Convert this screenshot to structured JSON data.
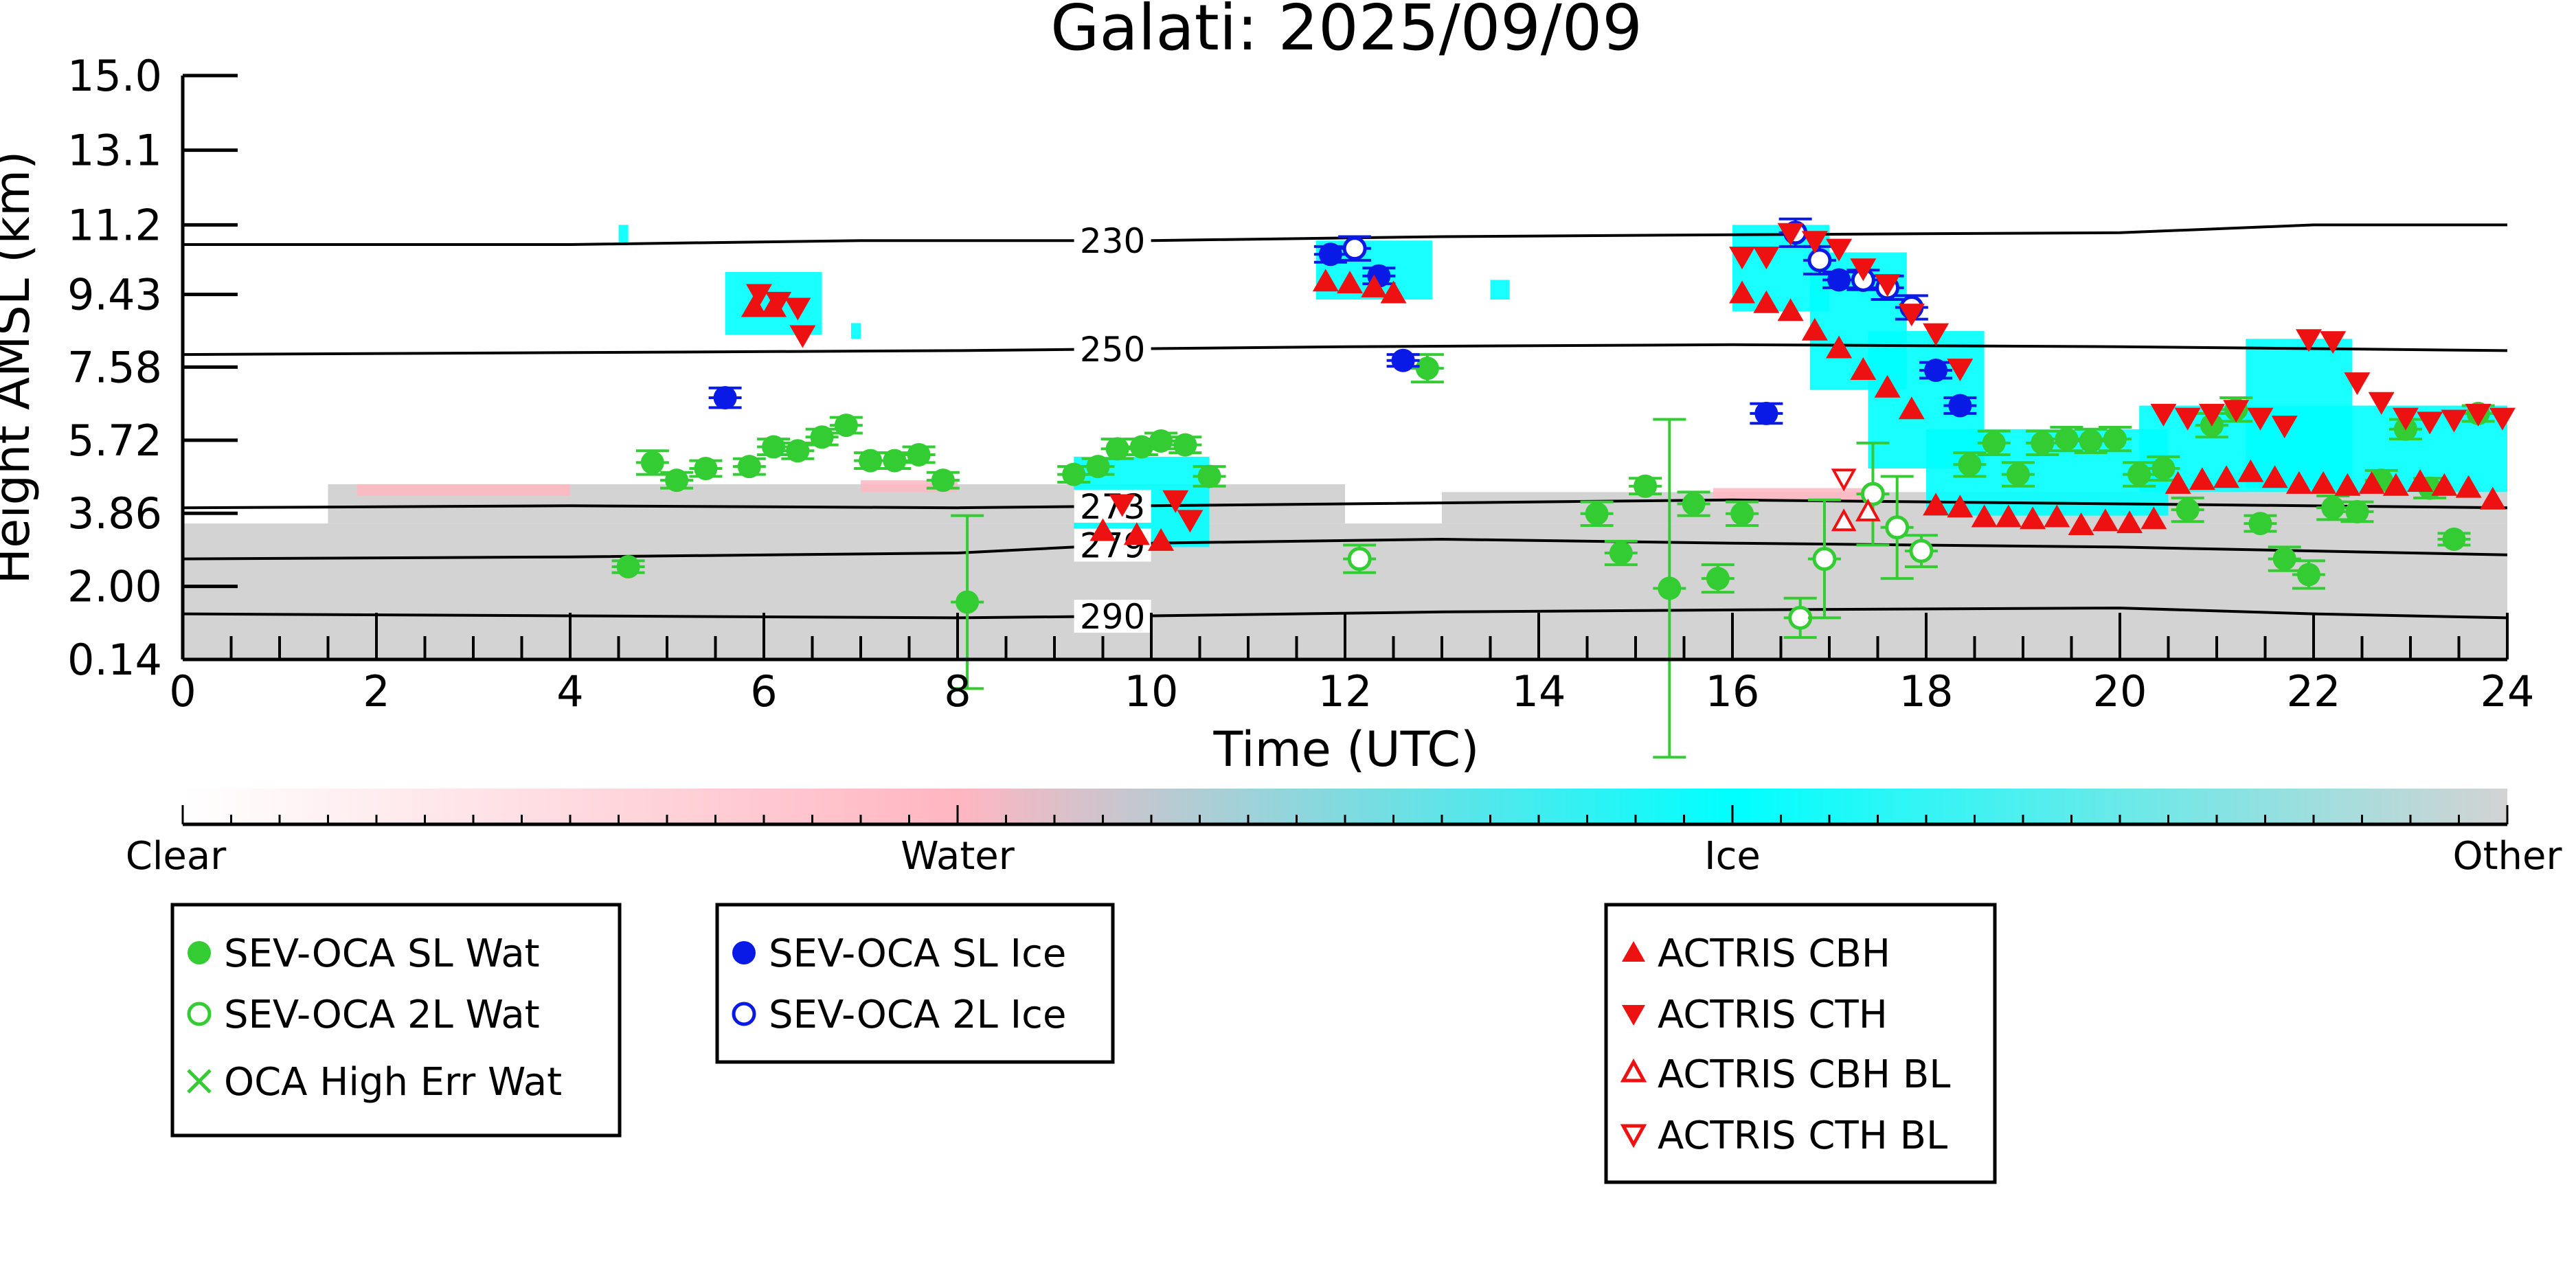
{
  "chart_data": {
    "type": "scatter",
    "title": "Galati: 2025/09/09",
    "xlabel": "Time (UTC)",
    "ylabel": "Height AMSL (km)",
    "xlim": [
      0,
      24
    ],
    "ylim": [
      0.14,
      15.0
    ],
    "xticks": [
      0,
      2,
      4,
      6,
      8,
      10,
      12,
      14,
      16,
      18,
      20,
      22,
      24
    ],
    "yticks": [
      0.14,
      2.0,
      3.86,
      5.72,
      7.58,
      9.43,
      11.2,
      13.1,
      15.0
    ],
    "ytick_labels": [
      "0.14",
      "2.00",
      "3.86",
      "5.72",
      "7.58",
      "9.43",
      "11.2",
      "13.1",
      "15.0"
    ],
    "contours": [
      {
        "label": "230",
        "label_x": 9.6,
        "points": [
          [
            0,
            10.7
          ],
          [
            4,
            10.7
          ],
          [
            7,
            10.8
          ],
          [
            10,
            10.8
          ],
          [
            13,
            10.9
          ],
          [
            16,
            10.95
          ],
          [
            20,
            11.0
          ],
          [
            22,
            11.2
          ],
          [
            24,
            11.2
          ]
        ]
      },
      {
        "label": "250",
        "label_x": 9.6,
        "points": [
          [
            0,
            7.9
          ],
          [
            4,
            7.95
          ],
          [
            8,
            8.0
          ],
          [
            12,
            8.1
          ],
          [
            16,
            8.15
          ],
          [
            20,
            8.1
          ],
          [
            24,
            8.0
          ]
        ]
      },
      {
        "label": "273",
        "label_x": 9.6,
        "points": [
          [
            0,
            4.0
          ],
          [
            4,
            4.05
          ],
          [
            8,
            4.0
          ],
          [
            10,
            4.05
          ],
          [
            12,
            4.1
          ],
          [
            16,
            4.2
          ],
          [
            20,
            4.1
          ],
          [
            24,
            4.0
          ]
        ]
      },
      {
        "label": "279",
        "label_x": 9.6,
        "points": [
          [
            0,
            2.7
          ],
          [
            4,
            2.75
          ],
          [
            8,
            2.85
          ],
          [
            10,
            3.1
          ],
          [
            13,
            3.2
          ],
          [
            16,
            3.1
          ],
          [
            20,
            3.0
          ],
          [
            24,
            2.8
          ]
        ]
      },
      {
        "label": "290",
        "label_x": 9.6,
        "points": [
          [
            0,
            1.3
          ],
          [
            4,
            1.25
          ],
          [
            8,
            1.2
          ],
          [
            10,
            1.25
          ],
          [
            13,
            1.35
          ],
          [
            16,
            1.4
          ],
          [
            20,
            1.45
          ],
          [
            22,
            1.3
          ],
          [
            24,
            1.2
          ]
        ]
      }
    ],
    "background": {
      "other_regions": [
        {
          "x0": 0,
          "x1": 24,
          "y0": 0.14,
          "y1": 3.6
        },
        {
          "x0": 1.5,
          "x1": 12,
          "y0": 3.6,
          "y1": 4.6
        },
        {
          "x0": 13,
          "x1": 24,
          "y0": 3.6,
          "y1": 4.4
        }
      ],
      "water_regions": [
        {
          "x0": 1.8,
          "x1": 4.0,
          "y0": 4.3,
          "y1": 4.6
        },
        {
          "x0": 7.0,
          "x1": 8.0,
          "y0": 4.4,
          "y1": 4.7
        },
        {
          "x0": 15.8,
          "x1": 17.5,
          "y0": 4.2,
          "y1": 4.5
        }
      ],
      "ice_regions": [
        {
          "x0": 4.5,
          "x1": 4.6,
          "y0": 10.7,
          "y1": 11.2
        },
        {
          "x0": 5.6,
          "x1": 6.6,
          "y0": 8.4,
          "y1": 10.0
        },
        {
          "x0": 6.9,
          "x1": 7.0,
          "y0": 8.3,
          "y1": 8.7
        },
        {
          "x0": 9.2,
          "x1": 10.6,
          "y0": 3.0,
          "y1": 5.3
        },
        {
          "x0": 11.7,
          "x1": 12.9,
          "y0": 9.3,
          "y1": 10.8
        },
        {
          "x0": 13.5,
          "x1": 13.7,
          "y0": 9.3,
          "y1": 9.8
        },
        {
          "x0": 16.0,
          "x1": 17.0,
          "y0": 9.0,
          "y1": 11.2
        },
        {
          "x0": 16.8,
          "x1": 17.8,
          "y0": 7.0,
          "y1": 10.5
        },
        {
          "x0": 17.4,
          "x1": 18.6,
          "y0": 5.0,
          "y1": 8.5
        },
        {
          "x0": 18.0,
          "x1": 20.5,
          "y0": 3.8,
          "y1": 6.0
        },
        {
          "x0": 20.2,
          "x1": 24.0,
          "y0": 4.4,
          "y1": 6.6
        },
        {
          "x0": 21.3,
          "x1": 22.4,
          "y0": 4.5,
          "y1": 8.3
        }
      ]
    },
    "series": [
      {
        "name": "SEV-OCA SL Wat",
        "marker": "circle-filled",
        "color": "#33cc33",
        "points": [
          [
            4.6,
            2.5,
            0.15
          ],
          [
            4.85,
            5.15,
            0.3
          ],
          [
            5.1,
            4.7,
            0.2
          ],
          [
            5.4,
            5.0,
            0.2
          ],
          [
            5.85,
            5.05,
            0.2
          ],
          [
            6.1,
            5.55,
            0.2
          ],
          [
            6.35,
            5.45,
            0.2
          ],
          [
            6.6,
            5.8,
            0.2
          ],
          [
            6.85,
            6.1,
            0.2
          ],
          [
            7.1,
            5.2,
            0.2
          ],
          [
            7.35,
            5.2,
            0.2
          ],
          [
            7.6,
            5.35,
            0.2
          ],
          [
            7.85,
            4.7,
            0.2
          ],
          [
            8.1,
            1.6,
            2.2
          ],
          [
            9.2,
            4.85,
            0.2
          ],
          [
            9.45,
            5.05,
            0.2
          ],
          [
            9.65,
            5.5,
            0.25
          ],
          [
            9.9,
            5.55,
            0.2
          ],
          [
            10.1,
            5.7,
            0.2
          ],
          [
            10.35,
            5.6,
            0.2
          ],
          [
            10.6,
            4.8,
            0.25
          ],
          [
            12.85,
            7.55,
            0.35
          ],
          [
            14.6,
            3.85,
            0.3
          ],
          [
            14.85,
            2.85,
            0.3
          ],
          [
            15.1,
            4.55,
            0.2
          ],
          [
            15.35,
            1.95,
            4.3
          ],
          [
            15.6,
            4.1,
            0.3
          ],
          [
            15.85,
            2.2,
            0.35
          ],
          [
            16.1,
            3.85,
            0.3
          ],
          [
            18.45,
            5.1,
            0.3
          ],
          [
            18.7,
            5.65,
            0.3
          ],
          [
            18.95,
            4.85,
            0.3
          ],
          [
            19.2,
            5.65,
            0.3
          ],
          [
            19.45,
            5.75,
            0.3
          ],
          [
            19.7,
            5.7,
            0.3
          ],
          [
            19.95,
            5.75,
            0.3
          ],
          [
            20.2,
            4.85,
            0.3
          ],
          [
            20.45,
            5.0,
            0.3
          ],
          [
            20.7,
            3.95,
            0.3
          ],
          [
            20.95,
            6.1,
            0.3
          ],
          [
            21.2,
            6.5,
            0.3
          ],
          [
            21.45,
            3.6,
            0.2
          ],
          [
            21.7,
            2.7,
            0.3
          ],
          [
            21.95,
            2.3,
            0.35
          ],
          [
            22.2,
            4.0,
            0.3
          ],
          [
            22.45,
            3.9,
            0.25
          ],
          [
            22.7,
            4.7,
            0.25
          ],
          [
            22.95,
            6.0,
            0.25
          ],
          [
            23.2,
            4.5,
            0.25
          ],
          [
            23.45,
            3.2,
            0.15
          ],
          [
            23.7,
            6.4,
            0.2
          ]
        ]
      },
      {
        "name": "SEV-OCA 2L Wat",
        "marker": "circle-open",
        "color": "#33cc33",
        "points": [
          [
            12.15,
            2.7,
            0.35
          ],
          [
            16.7,
            1.2,
            0.5
          ],
          [
            16.95,
            2.7,
            1.5
          ],
          [
            17.45,
            4.35,
            1.3
          ],
          [
            17.7,
            3.5,
            1.3
          ],
          [
            17.95,
            2.9,
            0.4
          ]
        ]
      },
      {
        "name": "OCA High Err Wat",
        "marker": "x",
        "color": "#33cc33",
        "points": []
      },
      {
        "name": "SEV-OCA SL Ice",
        "marker": "circle-filled",
        "color": "#0a1ae6",
        "points": [
          [
            5.6,
            6.8,
            0.25
          ],
          [
            11.85,
            10.45,
            0.2
          ],
          [
            12.35,
            9.9,
            0.2
          ],
          [
            12.6,
            7.75,
            0.15
          ],
          [
            16.35,
            6.4,
            0.25
          ],
          [
            17.1,
            9.8,
            0.2
          ],
          [
            18.1,
            7.5,
            0.2
          ],
          [
            18.35,
            6.6,
            0.2
          ]
        ]
      },
      {
        "name": "SEV-OCA 2L Ice",
        "marker": "circle-open",
        "color": "#0a1ae6",
        "points": [
          [
            12.1,
            10.6,
            0.3
          ],
          [
            16.65,
            11.0,
            0.35
          ],
          [
            16.9,
            10.3,
            0.35
          ],
          [
            17.35,
            9.8,
            0.25
          ],
          [
            17.6,
            9.6,
            0.3
          ],
          [
            17.85,
            9.1,
            0.3
          ]
        ]
      },
      {
        "name": "ACTRIS CBH",
        "marker": "triangle-up-filled",
        "color": "#ee1111",
        "points": [
          [
            5.9,
            9.1
          ],
          [
            6.1,
            9.1
          ],
          [
            11.8,
            9.75
          ],
          [
            12.05,
            9.7
          ],
          [
            12.3,
            9.6
          ],
          [
            12.5,
            9.45
          ],
          [
            9.5,
            3.4
          ],
          [
            9.85,
            3.3
          ],
          [
            10.1,
            3.15
          ],
          [
            16.1,
            9.45
          ],
          [
            16.35,
            9.2
          ],
          [
            16.6,
            9.0
          ],
          [
            16.85,
            8.5
          ],
          [
            17.1,
            8.05
          ],
          [
            17.35,
            7.5
          ],
          [
            17.6,
            7.05
          ],
          [
            17.85,
            6.5
          ],
          [
            18.1,
            4.05
          ],
          [
            18.35,
            4.0
          ],
          [
            18.6,
            3.75
          ],
          [
            18.85,
            3.75
          ],
          [
            19.1,
            3.7
          ],
          [
            19.35,
            3.75
          ],
          [
            19.6,
            3.55
          ],
          [
            19.85,
            3.65
          ],
          [
            20.1,
            3.6
          ],
          [
            20.35,
            3.7
          ],
          [
            20.6,
            4.6
          ],
          [
            20.85,
            4.7
          ],
          [
            21.1,
            4.75
          ],
          [
            21.35,
            4.9
          ],
          [
            21.6,
            4.75
          ],
          [
            21.85,
            4.6
          ],
          [
            22.1,
            4.6
          ],
          [
            22.35,
            4.55
          ],
          [
            22.6,
            4.6
          ],
          [
            22.85,
            4.55
          ],
          [
            23.1,
            4.65
          ],
          [
            23.35,
            4.55
          ],
          [
            23.6,
            4.5
          ],
          [
            23.85,
            4.2
          ]
        ]
      },
      {
        "name": "ACTRIS CTH",
        "marker": "triangle-down-filled",
        "color": "#ee1111",
        "points": [
          [
            5.95,
            9.45
          ],
          [
            6.15,
            9.25
          ],
          [
            6.35,
            9.1
          ],
          [
            6.4,
            8.4
          ],
          [
            10.25,
            4.2
          ],
          [
            10.4,
            3.7
          ],
          [
            9.7,
            4.1
          ],
          [
            16.1,
            10.4
          ],
          [
            16.35,
            10.4
          ],
          [
            16.6,
            11.0
          ],
          [
            16.85,
            10.8
          ],
          [
            17.1,
            10.6
          ],
          [
            17.35,
            10.1
          ],
          [
            17.6,
            9.7
          ],
          [
            17.85,
            8.95
          ],
          [
            18.1,
            8.45
          ],
          [
            18.35,
            7.55
          ],
          [
            20.45,
            6.4
          ],
          [
            20.7,
            6.3
          ],
          [
            20.95,
            6.4
          ],
          [
            21.2,
            6.5
          ],
          [
            21.45,
            6.3
          ],
          [
            21.7,
            6.1
          ],
          [
            21.95,
            8.3
          ],
          [
            22.2,
            8.25
          ],
          [
            22.45,
            7.2
          ],
          [
            22.7,
            6.7
          ],
          [
            22.95,
            6.3
          ],
          [
            23.2,
            6.2
          ],
          [
            23.45,
            6.25
          ],
          [
            23.7,
            6.4
          ],
          [
            23.95,
            6.3
          ]
        ]
      },
      {
        "name": "ACTRIS CBH BL",
        "marker": "triangle-up-open",
        "color": "#ee1111",
        "points": [
          [
            17.15,
            3.65
          ],
          [
            17.4,
            3.9
          ]
        ]
      },
      {
        "name": "ACTRIS CTH BL",
        "marker": "triangle-down-open",
        "color": "#ee1111",
        "points": [
          [
            17.15,
            4.75
          ]
        ]
      }
    ],
    "colorbar": {
      "labels": [
        "Clear",
        "Water",
        "Ice",
        "Other"
      ],
      "colors": [
        "#ffffff",
        "#ffb6c1",
        "#00ffff",
        "#d3d3d3"
      ]
    },
    "legend": {
      "placement": "below",
      "groups": [
        [
          "SEV-OCA SL Wat",
          "SEV-OCA 2L Wat",
          "OCA High Err Wat"
        ],
        [
          "SEV-OCA SL Ice",
          "SEV-OCA 2L Ice"
        ],
        [
          "ACTRIS CBH",
          "ACTRIS CTH",
          "ACTRIS CBH BL",
          "ACTRIS CTH BL"
        ]
      ]
    }
  }
}
